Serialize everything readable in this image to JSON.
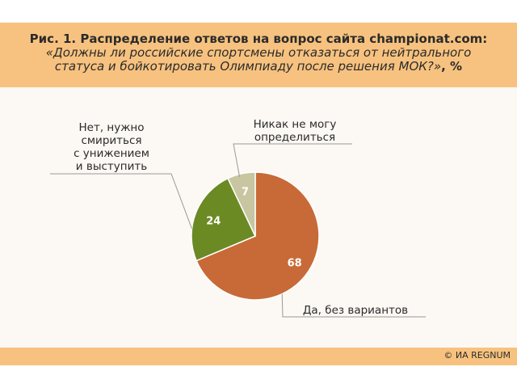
{
  "title": {
    "line1": "Рис. 1. Распределение ответов на вопрос сайта championat.com:",
    "line2": "«Должны ли российские спортсмены отказаться от нейтрального",
    "line3_italic": "статуса и бойкотировать Олимпиаду после решения МОК?»",
    "line3_suffix": ", %"
  },
  "footer": {
    "copyright": "© ИА REGNUM"
  },
  "colors": {
    "header": "#f7c27f",
    "plot_background": "#fcf8f3",
    "slice_yes": "#c86a37",
    "slice_no": "#6b8a23",
    "slice_undecided": "#c8c6a0"
  },
  "chart_data": {
    "type": "pie",
    "title": "Рис. 1. Распределение ответов на вопрос сайта championat.com: «Должны ли российские спортсмены отказаться от нейтрального статуса и бойкотировать Олимпиаду после решения МОК?», %",
    "categories": [
      "Да, без вариантов",
      "Нет, нужно смириться с унижением и выступить",
      "Никак не могу определиться"
    ],
    "values": [
      68,
      24,
      7
    ],
    "labels": [
      [
        "Да, без вариантов"
      ],
      [
        "Нет, нужно",
        "смириться",
        "с унижением",
        "и выступить"
      ],
      [
        "Никак не могу",
        "определиться"
      ]
    ],
    "value_labels": [
      "68",
      "24",
      "7"
    ],
    "colors": [
      "#c86a37",
      "#6b8a23",
      "#c8c6a0"
    ]
  }
}
